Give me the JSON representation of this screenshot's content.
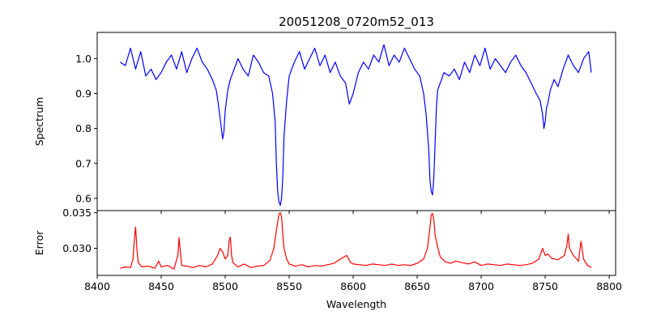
{
  "figure": {
    "title": "20051208_0720m52_013",
    "xlabel": "Wavelength"
  },
  "colors": {
    "spectrum": "#0000ff",
    "error": "#ff0000",
    "axes": "#000000",
    "background": "#ffffff"
  },
  "chart_data": [
    {
      "type": "line",
      "panel": "spectrum",
      "title": "20051208_0720m52_013",
      "ylabel": "Spectrum",
      "xlabel": "",
      "xlim": [
        8400,
        8805
      ],
      "ylim": [
        0.565,
        1.075
      ],
      "xticks": [
        8400,
        8450,
        8500,
        8550,
        8600,
        8650,
        8700,
        8750,
        8800
      ],
      "yticks": [
        0.6,
        0.7,
        0.8,
        0.9,
        1.0
      ],
      "ytick_labels": [
        "0.6",
        "0.7",
        "0.8",
        "0.9",
        "1.0"
      ],
      "series": [
        {
          "x": [
            8418,
            8422,
            8426,
            8430,
            8434,
            8438,
            8442,
            8446,
            8450,
            8454,
            8458,
            8462,
            8466,
            8470,
            8474,
            8478,
            8482,
            8486,
            8490,
            8493,
            8495,
            8497,
            8498,
            8499,
            8500,
            8502,
            8504,
            8507,
            8510,
            8514,
            8518,
            8522,
            8526,
            8530,
            8534,
            8537,
            8539,
            8540,
            8541,
            8542,
            8543,
            8544,
            8545,
            8546,
            8548,
            8550,
            8554,
            8558,
            8562,
            8566,
            8570,
            8574,
            8578,
            8582,
            8586,
            8590,
            8594,
            8597,
            8600,
            8604,
            8608,
            8612,
            8616,
            8620,
            8624,
            8628,
            8632,
            8636,
            8640,
            8644,
            8648,
            8652,
            8655,
            8657,
            8659,
            8660,
            8661,
            8662,
            8663,
            8664,
            8665,
            8666,
            8668,
            8671,
            8675,
            8679,
            8683,
            8687,
            8691,
            8695,
            8699,
            8703,
            8707,
            8711,
            8715,
            8719,
            8723,
            8727,
            8731,
            8735,
            8739,
            8743,
            8746,
            8748,
            8749,
            8750,
            8751,
            8752,
            8754,
            8757,
            8760,
            8764,
            8768,
            8772,
            8776,
            8780,
            8784,
            8786
          ],
          "y": [
            0.99,
            0.98,
            1.03,
            0.97,
            1.02,
            0.95,
            0.97,
            0.94,
            0.96,
            0.99,
            1.01,
            0.97,
            1.02,
            0.96,
            1.0,
            1.03,
            0.99,
            0.97,
            0.94,
            0.91,
            0.86,
            0.8,
            0.77,
            0.79,
            0.85,
            0.91,
            0.94,
            0.97,
            1.0,
            0.97,
            0.95,
            1.01,
            0.99,
            0.96,
            0.95,
            0.9,
            0.82,
            0.7,
            0.62,
            0.59,
            0.58,
            0.6,
            0.66,
            0.78,
            0.88,
            0.95,
            0.99,
            1.02,
            0.97,
            1.0,
            1.03,
            0.98,
            1.01,
            0.96,
            0.99,
            0.95,
            0.93,
            0.87,
            0.9,
            0.96,
            0.99,
            0.97,
            1.01,
            0.99,
            1.04,
            0.98,
            1.01,
            0.99,
            1.03,
            1.0,
            0.97,
            0.95,
            0.9,
            0.84,
            0.74,
            0.65,
            0.62,
            0.61,
            0.66,
            0.76,
            0.86,
            0.91,
            0.93,
            0.96,
            0.95,
            0.97,
            0.94,
            0.99,
            0.96,
            1.01,
            0.98,
            1.03,
            0.97,
            1.0,
            0.98,
            0.96,
            0.99,
            1.01,
            0.98,
            0.96,
            0.93,
            0.9,
            0.88,
            0.84,
            0.8,
            0.82,
            0.86,
            0.87,
            0.91,
            0.94,
            0.92,
            0.97,
            1.01,
            0.98,
            0.96,
            1.0,
            1.02,
            0.96
          ]
        }
      ]
    },
    {
      "type": "line",
      "panel": "error",
      "ylabel": "Error",
      "xlabel": "Wavelength",
      "xlim": [
        8400,
        8805
      ],
      "ylim": [
        0.0262,
        0.0353
      ],
      "xticks": [
        8400,
        8450,
        8500,
        8550,
        8600,
        8650,
        8700,
        8750,
        8800
      ],
      "xtick_labels": [
        "8400",
        "8450",
        "8500",
        "8550",
        "8600",
        "8650",
        "8700",
        "8750",
        "8800"
      ],
      "yticks": [
        0.03,
        0.035
      ],
      "ytick_labels": [
        "0.030",
        "0.035"
      ],
      "series": [
        {
          "x": [
            8418,
            8422,
            8426,
            8428,
            8429,
            8430,
            8431,
            8432,
            8435,
            8440,
            8445,
            8448,
            8450,
            8455,
            8460,
            8463,
            8464,
            8465,
            8466,
            8470,
            8475,
            8480,
            8485,
            8490,
            8494,
            8496,
            8498,
            8500,
            8502,
            8503,
            8504,
            8505,
            8506,
            8510,
            8515,
            8520,
            8525,
            8530,
            8535,
            8538,
            8540,
            8542,
            8543,
            8544,
            8545,
            8546,
            8548,
            8550,
            8555,
            8560,
            8565,
            8570,
            8575,
            8580,
            8585,
            8590,
            8595,
            8598,
            8600,
            8605,
            8610,
            8615,
            8620,
            8625,
            8630,
            8635,
            8640,
            8645,
            8650,
            8655,
            8658,
            8660,
            8661,
            8662,
            8663,
            8664,
            8666,
            8668,
            8672,
            8676,
            8680,
            8685,
            8690,
            8695,
            8700,
            8705,
            8710,
            8715,
            8720,
            8725,
            8730,
            8735,
            8740,
            8745,
            8748,
            8750,
            8752,
            8755,
            8760,
            8765,
            8767,
            8768,
            8769,
            8772,
            8776,
            8778,
            8780,
            8783,
            8786
          ],
          "y": [
            0.0272,
            0.0274,
            0.0273,
            0.0285,
            0.031,
            0.033,
            0.03,
            0.028,
            0.0274,
            0.0275,
            0.0272,
            0.0282,
            0.0274,
            0.0276,
            0.0271,
            0.029,
            0.0315,
            0.0295,
            0.0276,
            0.0275,
            0.0273,
            0.0276,
            0.0274,
            0.0278,
            0.029,
            0.03,
            0.0295,
            0.0285,
            0.029,
            0.031,
            0.0316,
            0.029,
            0.028,
            0.0274,
            0.0278,
            0.0273,
            0.0275,
            0.0276,
            0.0283,
            0.03,
            0.0325,
            0.0348,
            0.035,
            0.0345,
            0.032,
            0.03,
            0.0285,
            0.0278,
            0.0275,
            0.0277,
            0.0274,
            0.0276,
            0.0275,
            0.0277,
            0.0279,
            0.0285,
            0.029,
            0.028,
            0.0278,
            0.0277,
            0.0276,
            0.0278,
            0.0277,
            0.0276,
            0.0278,
            0.0276,
            0.0277,
            0.0276,
            0.0279,
            0.0285,
            0.03,
            0.033,
            0.0347,
            0.0349,
            0.034,
            0.0318,
            0.0302,
            0.0288,
            0.0281,
            0.0279,
            0.0282,
            0.028,
            0.0278,
            0.0281,
            0.0276,
            0.0278,
            0.0277,
            0.0276,
            0.0278,
            0.0277,
            0.0276,
            0.0277,
            0.0279,
            0.0285,
            0.03,
            0.029,
            0.0292,
            0.0286,
            0.0284,
            0.029,
            0.0305,
            0.032,
            0.03,
            0.029,
            0.0282,
            0.031,
            0.0285,
            0.0276,
            0.0273
          ]
        }
      ]
    }
  ]
}
